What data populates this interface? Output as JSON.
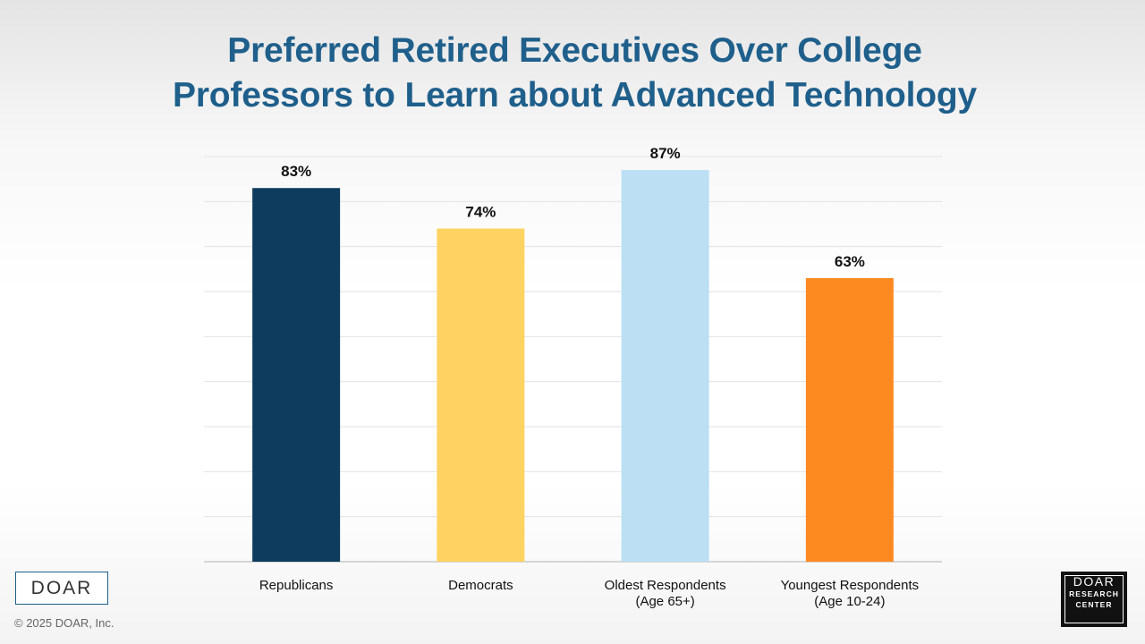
{
  "title": {
    "line1": "Preferred Retired Executives Over College",
    "line2": "Professors to Learn about Advanced Technology"
  },
  "chart_data": {
    "type": "bar",
    "title": "Preferred Retired Executives Over College Professors to Learn about Advanced Technology",
    "categories": [
      [
        "Republicans"
      ],
      [
        "Democrats"
      ],
      [
        "Oldest Respondents",
        "(Age 65+)"
      ],
      [
        "Youngest Respondents",
        "(Age 10-24)"
      ]
    ],
    "values": [
      83,
      74,
      87,
      63
    ],
    "data_labels": [
      "83%",
      "74%",
      "87%",
      "63%"
    ],
    "colors": [
      "#0d3c5e",
      "#fed362",
      "#bcdff3",
      "#fd8921"
    ],
    "ylim": [
      0,
      90
    ],
    "grid_step": 10,
    "grid": true,
    "xlabel": "",
    "ylabel": ""
  },
  "footer": {
    "logo_text": "DOAR",
    "copyright": "© 2025 DOAR, Inc.",
    "badge_line1": "DOAR",
    "badge_line2": "RESEARCH",
    "badge_line3": "CENTER"
  }
}
